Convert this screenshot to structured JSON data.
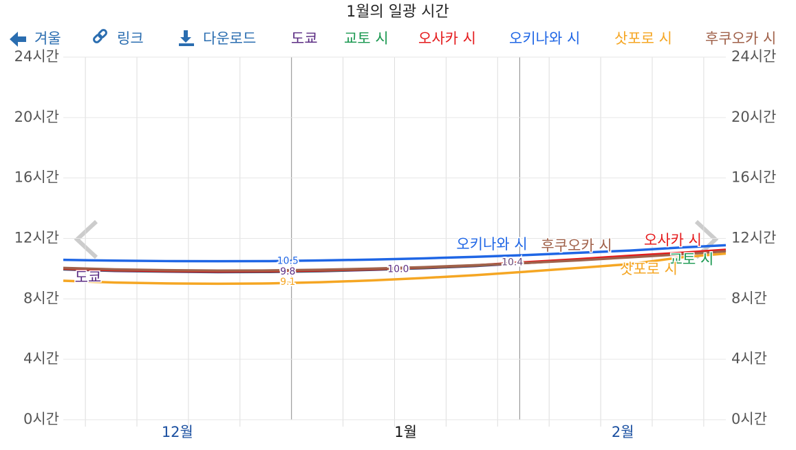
{
  "toolbar": [
    "겨울",
    "링크",
    "다운로드"
  ],
  "chart_data": {
    "type": "line",
    "title": "1월의 일광 시간",
    "x": [
      0,
      7,
      14,
      21,
      28,
      35,
      42,
      49,
      56,
      63,
      70,
      77,
      84,
      90
    ],
    "xlim": [
      0,
      90
    ],
    "xticks": [
      {
        "value": 15.5,
        "label": "12월"
      },
      {
        "value": 46.5,
        "label": "1월"
      },
      {
        "value": 76,
        "label": "2월"
      }
    ],
    "xgrid": [
      3,
      10,
      17,
      24,
      38,
      45,
      52,
      59,
      66,
      73,
      80,
      87
    ],
    "month_bounds": [
      31,
      62
    ],
    "ylim": [
      0,
      24
    ],
    "yticks": [
      {
        "value": 0,
        "label": "0시간"
      },
      {
        "value": 4,
        "label": "4시간"
      },
      {
        "value": 8,
        "label": "8시간"
      },
      {
        "value": 12,
        "label": "12시간"
      },
      {
        "value": 16,
        "label": "16시간"
      },
      {
        "value": 20,
        "label": "20시간"
      },
      {
        "value": 24,
        "label": "24시간"
      }
    ],
    "grid": true,
    "series": [
      {
        "name": "도쿄",
        "color": "#5b2c83",
        "values": [
          9.95,
          9.85,
          9.8,
          9.77,
          9.78,
          9.83,
          9.92,
          10.03,
          10.17,
          10.38,
          10.58,
          10.8,
          11.0,
          11.2
        ]
      },
      {
        "name": "교토 시",
        "color": "#1a9850",
        "values": [
          9.98,
          9.88,
          9.83,
          9.8,
          9.81,
          9.86,
          9.95,
          10.06,
          10.2,
          10.41,
          10.61,
          10.83,
          11.03,
          11.23
        ]
      },
      {
        "name": "오사카 시",
        "color": "#e41a1c",
        "values": [
          10.0,
          9.9,
          9.85,
          9.82,
          9.83,
          9.88,
          9.97,
          10.08,
          10.22,
          10.43,
          10.63,
          10.85,
          11.05,
          11.25
        ]
      },
      {
        "name": "오키나와 시",
        "color": "#1f66e5",
        "values": [
          10.58,
          10.53,
          10.5,
          10.49,
          10.5,
          10.54,
          10.6,
          10.68,
          10.78,
          10.9,
          11.05,
          11.2,
          11.4,
          11.55
        ]
      },
      {
        "name": "삿포로 시",
        "color": "#f5a623",
        "values": [
          9.2,
          9.08,
          9.02,
          9.0,
          9.02,
          9.1,
          9.22,
          9.38,
          9.57,
          9.8,
          10.05,
          10.3,
          10.75,
          11.0
        ]
      },
      {
        "name": "후쿠오카 시",
        "color": "#a0614a",
        "values": [
          10.05,
          9.95,
          9.9,
          9.87,
          9.88,
          9.93,
          10.0,
          10.1,
          10.23,
          10.38,
          10.55,
          10.75,
          10.95,
          11.15
        ]
      }
    ],
    "annotations": [
      {
        "x": 30.5,
        "y": 10.5,
        "label": "10.5",
        "color": "#1f66e5"
      },
      {
        "x": 30.5,
        "y": 9.8,
        "label": "9.8",
        "color": "#5b2c83"
      },
      {
        "x": 30.5,
        "y": 9.1,
        "label": "9.1",
        "color": "#f5a623"
      },
      {
        "x": 45.5,
        "y": 9.95,
        "label": "10.0",
        "color": "#5b2c83"
      },
      {
        "x": 61,
        "y": 10.4,
        "label": "10.4",
        "color": "#6a4a7a"
      }
    ]
  }
}
